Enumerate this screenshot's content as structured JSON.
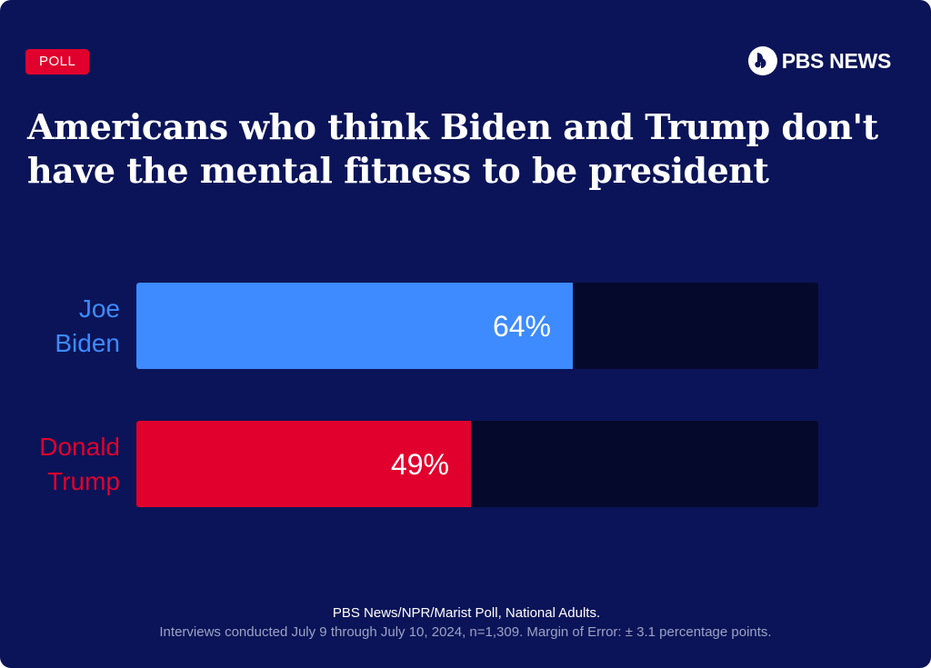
{
  "badge": "POLL",
  "brand": {
    "name": "PBS NEWS"
  },
  "colors": {
    "background": "#0b1458",
    "track": "#050a2c",
    "biden": "#3d8bff",
    "trump": "#e1002d",
    "badge": "#e1002d"
  },
  "chart_data": {
    "type": "bar",
    "orientation": "horizontal",
    "title": "Americans who think Biden and Trump don't have the mental fitness to be president",
    "categories": [
      "Joe Biden",
      "Donald Trump"
    ],
    "category_lines": [
      [
        "Joe",
        "Biden"
      ],
      [
        "Donald",
        "Trump"
      ]
    ],
    "values": [
      64,
      49
    ],
    "value_labels": [
      "64%",
      "49%"
    ],
    "xlim": [
      0,
      100
    ],
    "unit": "%"
  },
  "footer": {
    "source": "PBS News/NPR/Marist Poll, National Adults.",
    "note": "Interviews conducted July 9 through July 10, 2024, n=1,309. Margin of Error: ± 3.1 percentage points."
  }
}
